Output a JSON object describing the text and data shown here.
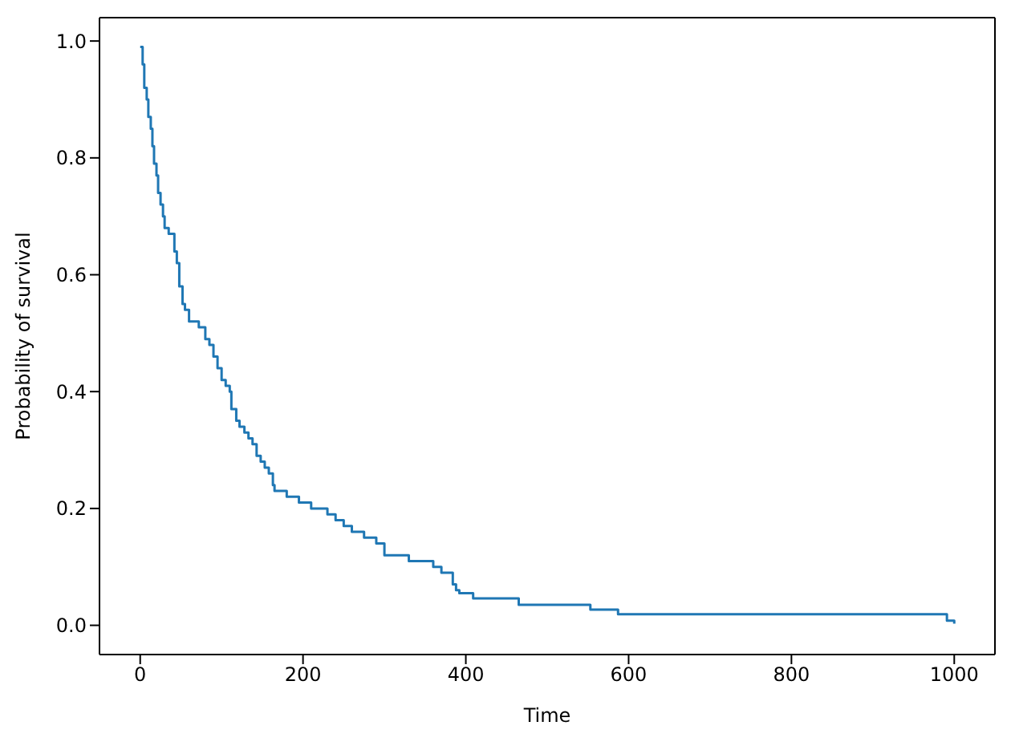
{
  "chart_data": {
    "type": "step",
    "xlabel": "Time",
    "ylabel": "Probability of survival",
    "xlim": [
      -50,
      1050
    ],
    "ylim": [
      -0.05,
      1.04
    ],
    "xticks": [
      0,
      200,
      400,
      600,
      800,
      1000
    ],
    "yticks": [
      {
        "value": 0,
        "label": "0.0"
      },
      {
        "value": 0.2,
        "label": "0.2"
      },
      {
        "value": 0.4,
        "label": "0.4"
      },
      {
        "value": 0.6,
        "label": "0.6"
      },
      {
        "value": 0.8,
        "label": "0.8"
      },
      {
        "value": 1,
        "label": "1.0"
      }
    ],
    "grid": false,
    "marker": "none",
    "line_style": "solid",
    "series": [
      {
        "color": "#1f77b4",
        "x": [
          0,
          3,
          5,
          8,
          10,
          13,
          15,
          17,
          20,
          22,
          25,
          28,
          30,
          35,
          42,
          45,
          48,
          52,
          55,
          60,
          72,
          80,
          85,
          90,
          95,
          100,
          105,
          110,
          112,
          118,
          122,
          128,
          133,
          138,
          143,
          148,
          153,
          158,
          163,
          165,
          180,
          195,
          210,
          230,
          240,
          250,
          260,
          275,
          290,
          300,
          330,
          360,
          370,
          384,
          388,
          392,
          409,
          465,
          553,
          587,
          991,
          1000
        ],
        "values": [
          0.99,
          0.96,
          0.92,
          0.9,
          0.87,
          0.85,
          0.82,
          0.79,
          0.77,
          0.74,
          0.72,
          0.7,
          0.68,
          0.67,
          0.64,
          0.62,
          0.58,
          0.55,
          0.54,
          0.52,
          0.51,
          0.49,
          0.48,
          0.46,
          0.44,
          0.42,
          0.41,
          0.4,
          0.37,
          0.35,
          0.34,
          0.33,
          0.32,
          0.31,
          0.29,
          0.28,
          0.27,
          0.26,
          0.24,
          0.23,
          0.22,
          0.21,
          0.2,
          0.19,
          0.18,
          0.17,
          0.16,
          0.15,
          0.14,
          0.12,
          0.11,
          0.1,
          0.09,
          0.07,
          0.06,
          0.055,
          0.046,
          0.035,
          0.027,
          0.019,
          0.008,
          0.003
        ]
      }
    ]
  }
}
